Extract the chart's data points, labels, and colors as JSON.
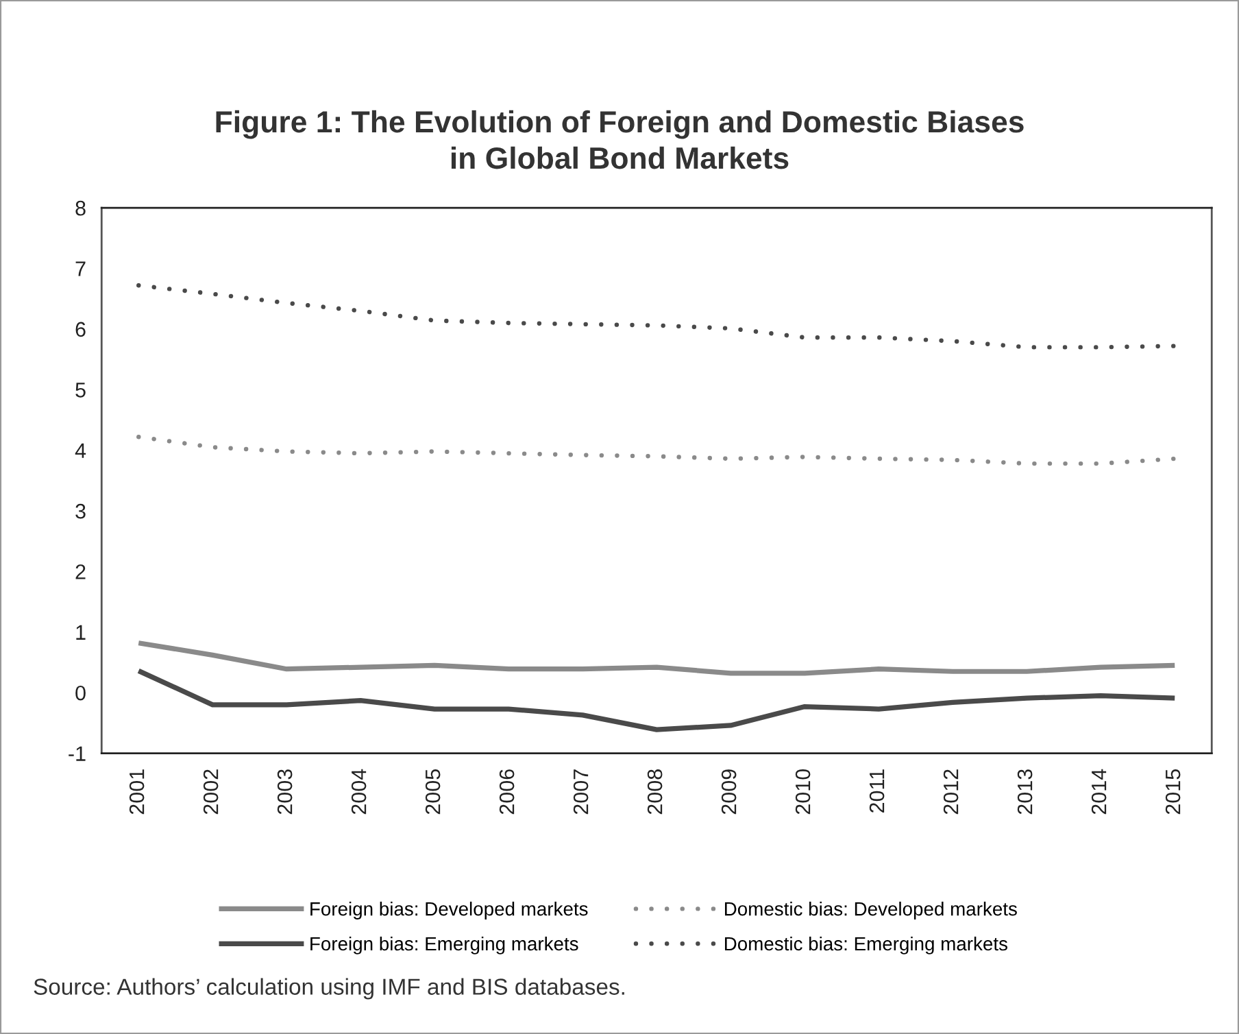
{
  "chart_data": {
    "type": "line",
    "title": "Figure 1: The Evolution of Foreign and Domestic Biases\nin Global Bond Markets",
    "categories": [
      "2001",
      "2002",
      "2003",
      "2004",
      "2005",
      "2006",
      "2007",
      "2008",
      "2009",
      "2010",
      "2011",
      "2012",
      "2013",
      "2014",
      "2015"
    ],
    "ylim": [
      -1,
      8
    ],
    "yticks": [
      -1,
      0,
      1,
      2,
      3,
      4,
      5,
      6,
      7,
      8
    ],
    "legend": "bottom",
    "annotations": [
      "Source: Authors’ calculation using IMF and BIS databases."
    ],
    "series": [
      {
        "name": "Foreign bias: Developed markets",
        "color": "#8a8a8a",
        "line_style": "solid",
        "values": [
          0.82,
          0.62,
          0.39,
          0.42,
          0.45,
          0.39,
          0.39,
          0.42,
          0.32,
          0.32,
          0.39,
          0.35,
          0.35,
          0.42,
          0.45
        ]
      },
      {
        "name": "Foreign bias: Emerging markets",
        "color": "#4a4a4a",
        "line_style": "solid",
        "values": [
          0.36,
          -0.2,
          -0.2,
          -0.13,
          -0.27,
          -0.27,
          -0.37,
          -0.61,
          -0.54,
          -0.23,
          -0.27,
          -0.16,
          -0.09,
          -0.05,
          -0.09
        ]
      },
      {
        "name": "Domestic bias: Developed markets",
        "color": "#8a8a8a",
        "line_style": "dotted",
        "values": [
          4.22,
          4.05,
          3.98,
          3.95,
          3.98,
          3.95,
          3.92,
          3.9,
          3.86,
          3.89,
          3.86,
          3.84,
          3.78,
          3.78,
          3.86
        ]
      },
      {
        "name": "Domestic bias: Emerging markets",
        "color": "#4a4a4a",
        "line_style": "dotted",
        "values": [
          6.72,
          6.58,
          6.43,
          6.3,
          6.14,
          6.1,
          6.08,
          6.06,
          6.01,
          5.86,
          5.86,
          5.8,
          5.7,
          5.7,
          5.72
        ]
      }
    ]
  }
}
